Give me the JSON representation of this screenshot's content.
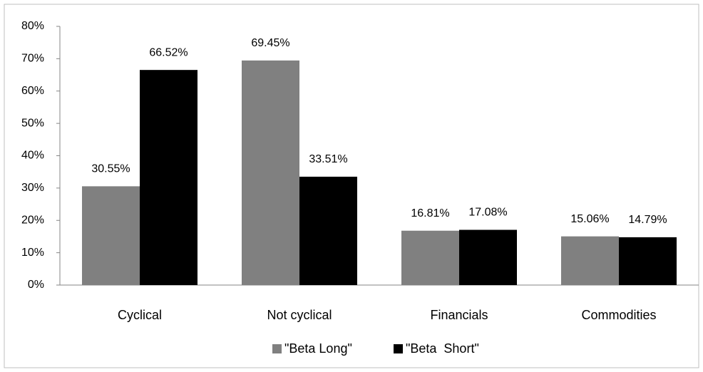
{
  "chart_data": {
    "type": "bar",
    "categories": [
      "Cyclical",
      "Not cyclical",
      "Financials",
      "Commodities"
    ],
    "series": [
      {
        "name": "\"Beta Long\"",
        "color": "#808080",
        "values": [
          30.55,
          69.45,
          16.81,
          15.06
        ],
        "value_labels": [
          "30.55%",
          "69.45%",
          "16.81%",
          "15.06%"
        ]
      },
      {
        "name": "\"Beta  Short\"",
        "color": "#000000",
        "values": [
          66.52,
          33.51,
          17.08,
          14.79
        ],
        "value_labels": [
          "66.52%",
          "33.51%",
          "17.08%",
          "14.79%"
        ]
      }
    ],
    "ylim": [
      0,
      80
    ],
    "yticks": [
      {
        "value": 0,
        "label": "0%"
      },
      {
        "value": 10,
        "label": "10%"
      },
      {
        "value": 20,
        "label": "20%"
      },
      {
        "value": 30,
        "label": "30%"
      },
      {
        "value": 40,
        "label": "40%"
      },
      {
        "value": 50,
        "label": "50%"
      },
      {
        "value": 60,
        "label": "60%"
      },
      {
        "value": 70,
        "label": "70%"
      },
      {
        "value": 80,
        "label": "80%"
      }
    ],
    "grid": false,
    "legend": "bottom"
  }
}
